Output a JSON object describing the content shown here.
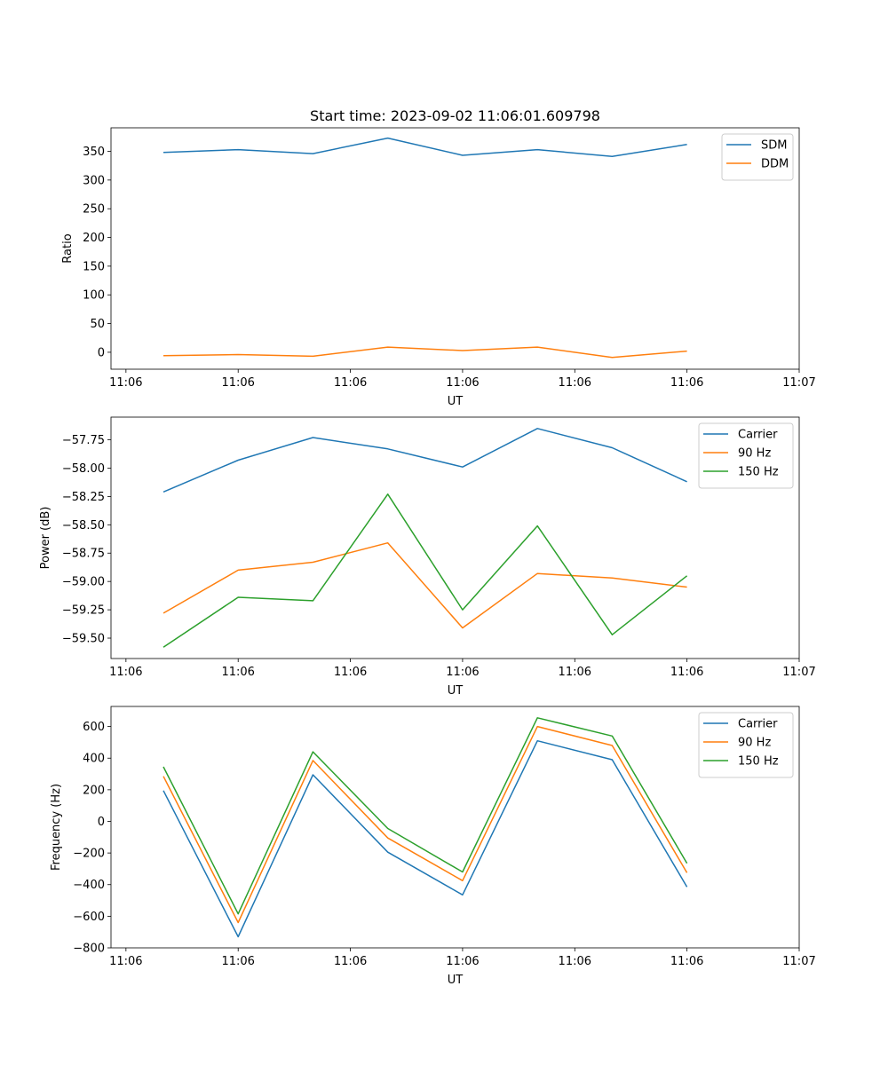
{
  "figure_title": "Start time: 2023-09-02 11:06:01.609798",
  "chart_data": [
    {
      "type": "line",
      "title": "Start time: 2023-09-02 11:06:01.609798",
      "xlabel": "UT",
      "ylabel": "Ratio",
      "xlim": [
        -0.7,
        8.5
      ],
      "ylim": [
        -29.5,
        391
      ],
      "x_ticks": [
        {
          "value": -0.5,
          "label": "11:06"
        },
        {
          "value": 1,
          "label": "11:06"
        },
        {
          "value": 2.5,
          "label": "11:06"
        },
        {
          "value": 4,
          "label": "11:06"
        },
        {
          "value": 5.5,
          "label": "11:06"
        },
        {
          "value": 7,
          "label": "11:06"
        },
        {
          "value": 8.5,
          "label": "11:07"
        }
      ],
      "y_ticks": [
        {
          "value": 0,
          "label": "0"
        },
        {
          "value": 50,
          "label": "50"
        },
        {
          "value": 100,
          "label": "100"
        },
        {
          "value": 150,
          "label": "150"
        },
        {
          "value": 200,
          "label": "200"
        },
        {
          "value": 250,
          "label": "250"
        },
        {
          "value": 300,
          "label": "300"
        },
        {
          "value": 350,
          "label": "350"
        }
      ],
      "x": [
        0,
        1,
        2,
        3,
        4,
        5,
        6,
        7
      ],
      "legend": "top-right",
      "series": [
        {
          "name": "SDM",
          "color": "#1f77b4",
          "values": [
            348,
            353,
            346,
            373,
            343,
            353,
            341,
            362
          ]
        },
        {
          "name": "DDM",
          "color": "#ff7f0e",
          "values": [
            -6,
            -4,
            -7,
            9,
            3,
            9,
            -9,
            2
          ]
        }
      ]
    },
    {
      "type": "line",
      "title": "",
      "xlabel": "UT",
      "ylabel": "Power (dB)",
      "xlim": [
        -0.7,
        8.5
      ],
      "ylim": [
        -59.68,
        -57.55
      ],
      "x_ticks": [
        {
          "value": -0.5,
          "label": "11:06"
        },
        {
          "value": 1,
          "label": "11:06"
        },
        {
          "value": 2.5,
          "label": "11:06"
        },
        {
          "value": 4,
          "label": "11:06"
        },
        {
          "value": 5.5,
          "label": "11:06"
        },
        {
          "value": 7,
          "label": "11:06"
        },
        {
          "value": 8.5,
          "label": "11:07"
        }
      ],
      "y_ticks": [
        {
          "value": -59.5,
          "label": "−59.50"
        },
        {
          "value": -59.25,
          "label": "−59.25"
        },
        {
          "value": -59.0,
          "label": "−59.00"
        },
        {
          "value": -58.75,
          "label": "−58.75"
        },
        {
          "value": -58.5,
          "label": "−58.50"
        },
        {
          "value": -58.25,
          "label": "−58.25"
        },
        {
          "value": -58.0,
          "label": "−58.00"
        },
        {
          "value": -57.75,
          "label": "−57.75"
        }
      ],
      "x": [
        0,
        1,
        2,
        3,
        4,
        5,
        6,
        7
      ],
      "legend": "top-right",
      "series": [
        {
          "name": "Carrier",
          "color": "#1f77b4",
          "values": [
            -58.21,
            -57.93,
            -57.73,
            -57.83,
            -57.99,
            -57.65,
            -57.82,
            -58.12
          ]
        },
        {
          "name": "90 Hz",
          "color": "#ff7f0e",
          "values": [
            -59.28,
            -58.9,
            -58.83,
            -58.66,
            -59.41,
            -58.93,
            -58.97,
            -59.05
          ]
        },
        {
          "name": "150 Hz",
          "color": "#2ca02c",
          "values": [
            -59.58,
            -59.14,
            -59.17,
            -58.23,
            -59.25,
            -58.51,
            -59.47,
            -58.95
          ]
        }
      ]
    },
    {
      "type": "line",
      "title": "",
      "xlabel": "UT",
      "ylabel": "Frequency (Hz)",
      "xlim": [
        -0.7,
        8.5
      ],
      "ylim": [
        -800,
        727
      ],
      "x_ticks": [
        {
          "value": -0.5,
          "label": "11:06"
        },
        {
          "value": 1,
          "label": "11:06"
        },
        {
          "value": 2.5,
          "label": "11:06"
        },
        {
          "value": 4,
          "label": "11:06"
        },
        {
          "value": 5.5,
          "label": "11:06"
        },
        {
          "value": 7,
          "label": "11:06"
        },
        {
          "value": 8.5,
          "label": "11:07"
        }
      ],
      "y_ticks": [
        {
          "value": -800,
          "label": "−800"
        },
        {
          "value": -600,
          "label": "−600"
        },
        {
          "value": -400,
          "label": "−400"
        },
        {
          "value": -200,
          "label": "−200"
        },
        {
          "value": 0,
          "label": "0"
        },
        {
          "value": 200,
          "label": "200"
        },
        {
          "value": 400,
          "label": "400"
        },
        {
          "value": 600,
          "label": "600"
        }
      ],
      "x": [
        0,
        1,
        2,
        3,
        4,
        5,
        6,
        7
      ],
      "legend": "top-right",
      "series": [
        {
          "name": "Carrier",
          "color": "#1f77b4",
          "values": [
            195,
            -730,
            295,
            -195,
            -465,
            510,
            390,
            -415
          ]
        },
        {
          "name": "90 Hz",
          "color": "#ff7f0e",
          "values": [
            285,
            -640,
            385,
            -105,
            -375,
            600,
            480,
            -325
          ]
        },
        {
          "name": "150 Hz",
          "color": "#2ca02c",
          "values": [
            345,
            -585,
            440,
            -45,
            -320,
            655,
            540,
            -265
          ]
        }
      ]
    }
  ]
}
